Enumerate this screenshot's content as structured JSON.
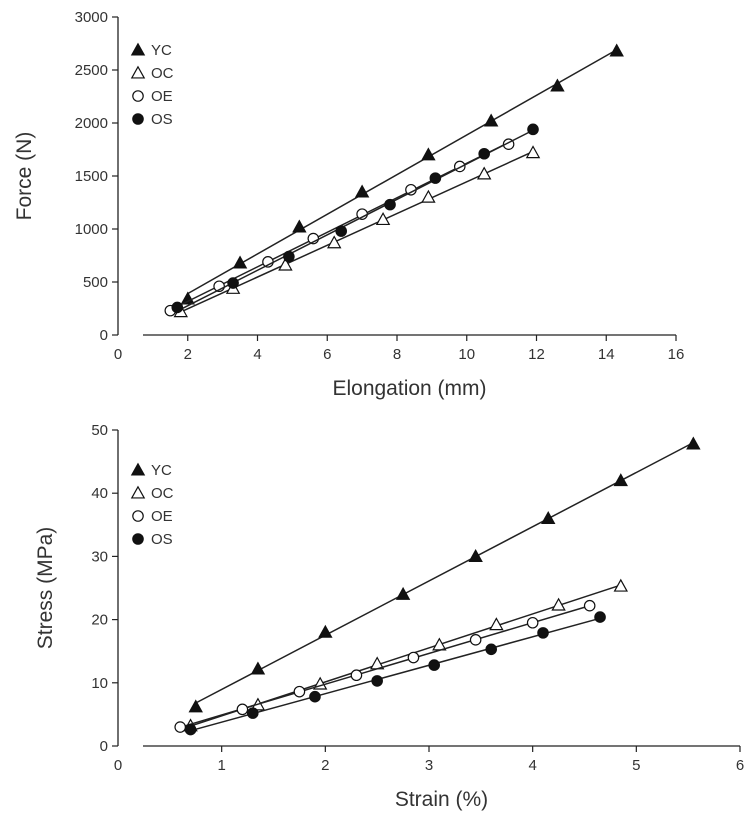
{
  "chart_data": [
    {
      "type": "line",
      "xlabel": "Elongation (mm)",
      "ylabel": "Force (N)",
      "xlim": [
        0,
        16
      ],
      "ylim": [
        0,
        3000
      ],
      "xticks": [
        "0",
        "2",
        "4",
        "6",
        "8",
        "10",
        "12",
        "14",
        "16"
      ],
      "yticks": [
        "0",
        "500",
        "1000",
        "1500",
        "2000",
        "2500",
        "3000"
      ],
      "legend_position": "top-left",
      "series": [
        {
          "name": "YC",
          "marker": "filled-triangle",
          "x": [
            2.0,
            3.5,
            5.2,
            7.0,
            8.9,
            10.7,
            12.6,
            14.3
          ],
          "y": [
            340,
            680,
            1020,
            1350,
            1700,
            2020,
            2350,
            2680
          ]
        },
        {
          "name": "OC",
          "marker": "open-triangle",
          "x": [
            1.8,
            3.3,
            4.8,
            6.2,
            7.6,
            8.9,
            10.5,
            11.9
          ],
          "y": [
            220,
            440,
            660,
            870,
            1090,
            1300,
            1520,
            1720
          ]
        },
        {
          "name": "OE",
          "marker": "open-circle",
          "x": [
            1.5,
            2.9,
            4.3,
            5.6,
            7.0,
            8.4,
            9.8,
            11.2
          ],
          "y": [
            230,
            460,
            690,
            910,
            1140,
            1370,
            1590,
            1800
          ]
        },
        {
          "name": "OS",
          "marker": "filled-circle",
          "x": [
            1.7,
            3.3,
            4.9,
            6.4,
            7.8,
            9.1,
            10.5,
            11.9
          ],
          "y": [
            260,
            490,
            740,
            980,
            1230,
            1480,
            1710,
            1940
          ]
        }
      ]
    },
    {
      "type": "line",
      "xlabel": "Strain (%)",
      "ylabel": "Stress (MPa)",
      "xlim": [
        0,
        6
      ],
      "ylim": [
        0,
        50
      ],
      "xticks": [
        "0",
        "1",
        "2",
        "3",
        "4",
        "5",
        "6"
      ],
      "yticks": [
        "0",
        "10",
        "20",
        "30",
        "40",
        "50"
      ],
      "legend_position": "top-left",
      "series": [
        {
          "name": "YC",
          "marker": "filled-triangle",
          "x": [
            0.75,
            1.35,
            2.0,
            2.75,
            3.45,
            4.15,
            4.85,
            5.55
          ],
          "y": [
            6.2,
            12.2,
            18.0,
            24.0,
            30.0,
            36.0,
            42.0,
            47.8
          ]
        },
        {
          "name": "OC",
          "marker": "open-triangle",
          "x": [
            0.7,
            1.35,
            1.95,
            2.5,
            3.1,
            3.65,
            4.25,
            4.85
          ],
          "y": [
            3.2,
            6.5,
            9.8,
            13.0,
            16.0,
            19.2,
            22.3,
            25.3
          ]
        },
        {
          "name": "OE",
          "marker": "open-circle",
          "x": [
            0.6,
            1.2,
            1.75,
            2.3,
            2.85,
            3.45,
            4.0,
            4.55
          ],
          "y": [
            3.0,
            5.8,
            8.6,
            11.2,
            14.0,
            16.8,
            19.5,
            22.2
          ]
        },
        {
          "name": "OS",
          "marker": "filled-circle",
          "x": [
            0.7,
            1.3,
            1.9,
            2.5,
            3.05,
            3.6,
            4.1,
            4.65
          ],
          "y": [
            2.6,
            5.2,
            7.8,
            10.3,
            12.8,
            15.3,
            17.9,
            20.4
          ]
        }
      ]
    }
  ]
}
